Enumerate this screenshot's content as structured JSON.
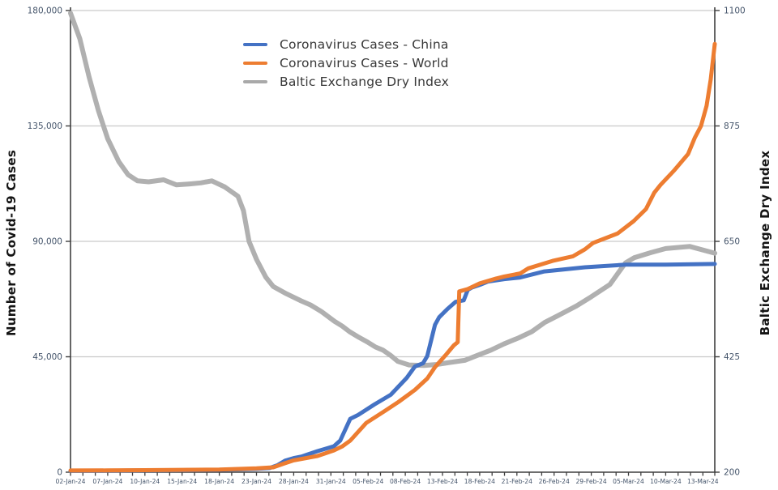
{
  "figure": {
    "background": "#ffffff",
    "left_axis_title": "Number of Covid-19 Cases",
    "right_axis_title": "Baltic Exchange Dry Index"
  },
  "legend": {
    "position": "top-center",
    "items": [
      {
        "label": "Coronavirus Cases - China",
        "color": "#4472C4"
      },
      {
        "label": "Coronavirus Cases - World",
        "color": "#ED7D31"
      },
      {
        "label": "Baltic Exchange Dry Index",
        "color": "#A9A9A9"
      }
    ]
  },
  "chart_data": {
    "type": "line",
    "title": "",
    "grid": true,
    "legend_position": "top-center",
    "colors": {
      "grid": "#c9c9c9",
      "axis": "#3f3f3f",
      "tick_text": "#44546A"
    },
    "x_labels": [
      "02-Jan-24",
      "07-Jan-24",
      "10-Jan-24",
      "15-Jan-24",
      "18-Jan-24",
      "23-Jan-24",
      "28-Jan-24",
      "31-Jan-24",
      "05-Feb-24",
      "08-Feb-24",
      "13-Feb-24",
      "18-Feb-24",
      "21-Feb-24",
      "26-Feb-24",
      "29-Feb-24",
      "05-Mar-24",
      "10-Mar-24",
      "13-Mar-24"
    ],
    "minor_ticks_per_label_interval": 3,
    "axes": {
      "left": {
        "title": "Number of Covid-19 Cases",
        "min": 0,
        "max": 180000,
        "tick_values": [
          0,
          45000,
          90000,
          135000,
          180000
        ],
        "tick_labels": [
          "0",
          "45,000",
          "90,000",
          "135,000",
          "180,000"
        ]
      },
      "right": {
        "title": "Baltic Exchange Dry Index",
        "min": 200,
        "max": 1100,
        "tick_values": [
          200,
          425,
          650,
          875,
          1100
        ],
        "tick_labels": [
          "200",
          "425",
          "650",
          "875",
          "1100"
        ]
      }
    },
    "series": [
      {
        "id": "coronavirus-cases-china",
        "name": "Coronavirus Cases - China",
        "axis": "left",
        "color": "#4472C4",
        "width": 5,
        "z_order": 2,
        "points": [
          [
            0,
            550
          ],
          [
            1,
            600
          ],
          [
            2,
            700
          ],
          [
            3,
            800
          ],
          [
            4,
            900
          ],
          [
            5,
            1300
          ],
          [
            5.35,
            1600
          ],
          [
            5.56,
            2700
          ],
          [
            5.77,
            4500
          ],
          [
            6,
            5500
          ],
          [
            6.21,
            6100
          ],
          [
            6.64,
            8200
          ],
          [
            7.08,
            10100
          ],
          [
            7.25,
            12300
          ],
          [
            7.52,
            20800
          ],
          [
            7.73,
            22300
          ],
          [
            8.17,
            26400
          ],
          [
            8.61,
            30200
          ],
          [
            9.04,
            36800
          ],
          [
            9.26,
            41200
          ],
          [
            9.48,
            42500
          ],
          [
            9.59,
            45300
          ],
          [
            9.8,
            57500
          ],
          [
            9.91,
            60400
          ],
          [
            10.13,
            63600
          ],
          [
            10.35,
            66400
          ],
          [
            10.57,
            67000
          ],
          [
            10.68,
            71100
          ],
          [
            10.79,
            72000
          ],
          [
            11,
            73000
          ],
          [
            11.22,
            74300
          ],
          [
            11.66,
            75300
          ],
          [
            12.09,
            75900
          ],
          [
            12.74,
            78300
          ],
          [
            13.83,
            79900
          ],
          [
            14.92,
            80900
          ],
          [
            16,
            80900
          ],
          [
            17.32,
            81200
          ]
        ]
      },
      {
        "id": "coronavirus-cases-world",
        "name": "Coronavirus Cases - World",
        "axis": "left",
        "color": "#ED7D31",
        "width": 5,
        "z_order": 3,
        "points": [
          [
            0,
            650
          ],
          [
            1,
            700
          ],
          [
            2,
            800
          ],
          [
            3,
            900
          ],
          [
            4,
            1000
          ],
          [
            5,
            1500
          ],
          [
            5.45,
            1900
          ],
          [
            5.77,
            3500
          ],
          [
            6,
            4600
          ],
          [
            6.64,
            6300
          ],
          [
            7.08,
            8500
          ],
          [
            7.3,
            10000
          ],
          [
            7.52,
            12300
          ],
          [
            7.95,
            19200
          ],
          [
            8.39,
            23300
          ],
          [
            8.82,
            27400
          ],
          [
            9.26,
            32100
          ],
          [
            9.59,
            36500
          ],
          [
            9.8,
            41000
          ],
          [
            10.1,
            45900
          ],
          [
            10.3,
            49400
          ],
          [
            10.41,
            50700
          ],
          [
            10.45,
            70500
          ],
          [
            10.68,
            71400
          ],
          [
            11,
            73600
          ],
          [
            11.44,
            75500
          ],
          [
            11.66,
            76300
          ],
          [
            12.09,
            77500
          ],
          [
            12.31,
            79500
          ],
          [
            12.96,
            82400
          ],
          [
            13.51,
            84200
          ],
          [
            13.83,
            86900
          ],
          [
            14.05,
            89400
          ],
          [
            14.71,
            93100
          ],
          [
            15.14,
            97900
          ],
          [
            15.47,
            102600
          ],
          [
            15.69,
            108900
          ],
          [
            15.86,
            112000
          ],
          [
            16.23,
            117700
          ],
          [
            16.6,
            124000
          ],
          [
            16.78,
            130300
          ],
          [
            16.95,
            135000
          ],
          [
            17.1,
            142900
          ],
          [
            17.21,
            153200
          ],
          [
            17.32,
            167000
          ]
        ]
      },
      {
        "id": "baltic-exchange-dry-index",
        "name": "Baltic Exchange Dry Index",
        "axis": "right",
        "color": "#B0B0B0",
        "width": 6,
        "z_order": 1,
        "points": [
          [
            0,
            1095
          ],
          [
            0.25,
            1045
          ],
          [
            0.5,
            970
          ],
          [
            0.75,
            905
          ],
          [
            1,
            850
          ],
          [
            1.3,
            805
          ],
          [
            1.55,
            780
          ],
          [
            1.8,
            768
          ],
          [
            2.1,
            766
          ],
          [
            2.5,
            770
          ],
          [
            2.85,
            760
          ],
          [
            3.2,
            762
          ],
          [
            3.5,
            764
          ],
          [
            3.8,
            768
          ],
          [
            4.15,
            756
          ],
          [
            4.5,
            738
          ],
          [
            4.65,
            710
          ],
          [
            4.8,
            650
          ],
          [
            5,
            615
          ],
          [
            5.25,
            580
          ],
          [
            5.45,
            562
          ],
          [
            5.8,
            548
          ],
          [
            6.2,
            534
          ],
          [
            6.45,
            526
          ],
          [
            6.75,
            513
          ],
          [
            7.1,
            494
          ],
          [
            7.3,
            485
          ],
          [
            7.5,
            474
          ],
          [
            7.75,
            463
          ],
          [
            8,
            453
          ],
          [
            8.2,
            444
          ],
          [
            8.4,
            438
          ],
          [
            8.6,
            428
          ],
          [
            8.8,
            416
          ],
          [
            9.1,
            409
          ],
          [
            9.5,
            408
          ],
          [
            9.85,
            410
          ],
          [
            10.2,
            414
          ],
          [
            10.6,
            418
          ],
          [
            10.95,
            428
          ],
          [
            11.3,
            438
          ],
          [
            11.65,
            450
          ],
          [
            12.05,
            462
          ],
          [
            12.4,
            474
          ],
          [
            12.75,
            492
          ],
          [
            13.1,
            505
          ],
          [
            13.6,
            524
          ],
          [
            14,
            542
          ],
          [
            14.5,
            566
          ],
          [
            14.92,
            608
          ],
          [
            15.15,
            618
          ],
          [
            15.6,
            628
          ],
          [
            16,
            636
          ],
          [
            16.65,
            640
          ],
          [
            17.32,
            627
          ]
        ]
      }
    ]
  }
}
